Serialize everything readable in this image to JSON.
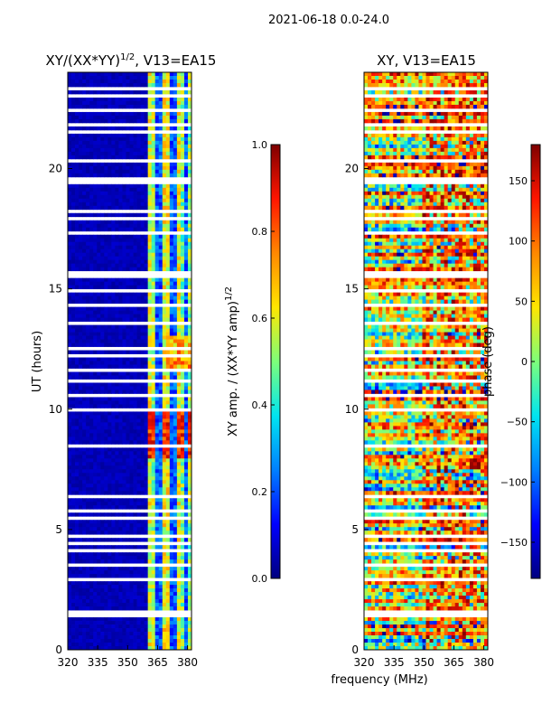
{
  "suptitle": "2021-06-18 0.0-24.0",
  "xlabel": "frequency (MHz)",
  "colormap": [
    "#00007f",
    "#0000ff",
    "#0080ff",
    "#00e5f0",
    "#7dff7a",
    "#ffe600",
    "#ff8800",
    "#ff1500",
    "#7f0000"
  ],
  "chart_data": [
    {
      "type": "heatmap",
      "title_main": "XY/(XX*YY)",
      "title_sup": "1/2",
      "title_rest": ", V13=EA15",
      "ylabel": "UT (hours)",
      "xlim": [
        320,
        382
      ],
      "ylim": [
        0,
        24
      ],
      "xticks": [
        320,
        335,
        350,
        365,
        380
      ],
      "yticks": [
        0,
        5,
        10,
        15,
        20
      ],
      "colorbar": {
        "label_main": "XY amp. / (XX*YY amp)",
        "label_sup": "1/2",
        "range": [
          0.0,
          1.0
        ],
        "ticks": [
          "0.0",
          "0.2",
          "0.4",
          "0.6",
          "0.8",
          "1.0"
        ]
      }
    },
    {
      "type": "heatmap",
      "title": "XY, V13=EA15",
      "xlim": [
        320,
        382
      ],
      "ylim": [
        0,
        24
      ],
      "xticks": [
        320,
        335,
        350,
        365,
        380
      ],
      "yticks": [
        0,
        5,
        10,
        15,
        20
      ],
      "colorbar": {
        "label": "phase (deg)",
        "range": [
          -180,
          180
        ],
        "ticks": [
          "150",
          "100",
          "50",
          "0",
          "−50",
          "−100",
          "−150"
        ]
      }
    }
  ]
}
